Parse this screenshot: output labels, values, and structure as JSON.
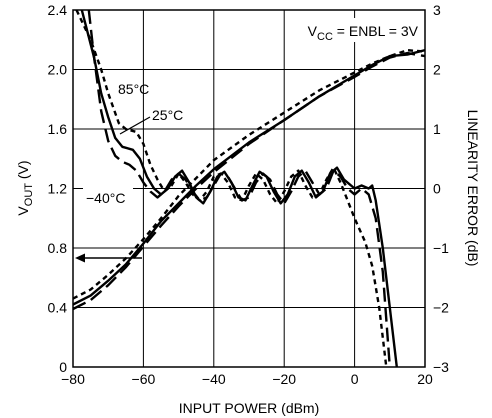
{
  "chart_data": {
    "type": "line",
    "title": "",
    "xlabel": "INPUT POWER (dBm)",
    "ylabel": {
      "main": "V",
      "sub": "OUT",
      "unit": " (V)"
    },
    "y2label": "LINEARITY ERROR (dB)",
    "xlim": [
      -80,
      20
    ],
    "ylim": [
      0,
      2.4
    ],
    "y2lim": [
      -3,
      3
    ],
    "grid": true,
    "x_ticks": [
      "−80",
      "−60",
      "−40",
      "−20",
      "0",
      "20"
    ],
    "y_ticks": [
      "0",
      "0.4",
      "0.8",
      "1.2",
      "1.6",
      "2.0",
      "2.4"
    ],
    "y2_ticks": [
      "−3",
      "−2",
      "−1",
      "0",
      "1",
      "2",
      "3"
    ],
    "condition": {
      "parts": [
        {
          "t": "V"
        },
        {
          "t": "CC",
          "sub": true
        },
        {
          "t": " = ENBL = 3V"
        }
      ]
    },
    "annotations": [
      "85°C",
      "25°C",
      "−40°C"
    ],
    "series": [
      {
        "name": "85°C",
        "axis": "left",
        "style": "short-dash",
        "points": [
          [
            -80,
            0.46
          ],
          [
            -75,
            0.52
          ],
          [
            -70,
            0.62
          ],
          [
            -65,
            0.73
          ],
          [
            -60,
            0.86
          ],
          [
            -55,
            1.0
          ],
          [
            -50,
            1.15
          ],
          [
            -45,
            1.27
          ],
          [
            -40,
            1.39
          ],
          [
            -30,
            1.56
          ],
          [
            -20,
            1.71
          ],
          [
            -10,
            1.86
          ],
          [
            0,
            1.98
          ],
          [
            5,
            2.04
          ],
          [
            10,
            2.09
          ],
          [
            15,
            2.13
          ],
          [
            20,
            2.12
          ]
        ]
      },
      {
        "name": "25°C",
        "axis": "left",
        "style": "solid",
        "points": [
          [
            -80,
            0.42
          ],
          [
            -75,
            0.48
          ],
          [
            -70,
            0.58
          ],
          [
            -65,
            0.69
          ],
          [
            -60,
            0.83
          ],
          [
            -55,
            0.98
          ],
          [
            -50,
            1.1
          ],
          [
            -45,
            1.22
          ],
          [
            -40,
            1.33
          ],
          [
            -30,
            1.51
          ],
          [
            -20,
            1.66
          ],
          [
            -10,
            1.82
          ],
          [
            0,
            1.96
          ],
          [
            5,
            2.03
          ],
          [
            10,
            2.09
          ],
          [
            15,
            2.1
          ],
          [
            20,
            2.13
          ]
        ]
      },
      {
        "name": "−40°C",
        "axis": "left",
        "style": "long-dash",
        "points": [
          [
            -80,
            0.39
          ],
          [
            -75,
            0.45
          ],
          [
            -70,
            0.55
          ],
          [
            -65,
            0.67
          ],
          [
            -60,
            0.81
          ],
          [
            -55,
            0.95
          ],
          [
            -50,
            1.08
          ],
          [
            -45,
            1.2
          ],
          [
            -40,
            1.31
          ],
          [
            -30,
            1.5
          ],
          [
            -20,
            1.66
          ],
          [
            -10,
            1.82
          ],
          [
            0,
            1.95
          ],
          [
            5,
            2.02
          ],
          [
            10,
            2.08
          ],
          [
            15,
            2.11
          ],
          [
            20,
            2.09
          ]
        ]
      },
      {
        "name": "85°C",
        "axis": "right",
        "style": "short-dash",
        "points": [
          [
            -79,
            3.0
          ],
          [
            -75,
            2.5
          ],
          [
            -72,
            2.0
          ],
          [
            -70,
            1.6
          ],
          [
            -67,
            1.1
          ],
          [
            -65,
            1.0
          ],
          [
            -62,
            0.95
          ],
          [
            -60,
            0.75
          ],
          [
            -58,
            0.4
          ],
          [
            -56,
            0.15
          ],
          [
            -54,
            -0.05
          ],
          [
            -52,
            0.05
          ],
          [
            -50,
            0.25
          ],
          [
            -48,
            0.1
          ],
          [
            -46,
            -0.1
          ],
          [
            -44,
            -0.2
          ],
          [
            -42,
            -0.05
          ],
          [
            -40,
            0.2
          ],
          [
            -38,
            0.25
          ],
          [
            -36,
            0.1
          ],
          [
            -34,
            -0.15
          ],
          [
            -32,
            -0.2
          ],
          [
            -30,
            0.05
          ],
          [
            -28,
            0.25
          ],
          [
            -26,
            0.15
          ],
          [
            -24,
            -0.1
          ],
          [
            -22,
            -0.25
          ],
          [
            -20,
            -0.05
          ],
          [
            -18,
            0.2
          ],
          [
            -16,
            0.3
          ],
          [
            -14,
            0.05
          ],
          [
            -12,
            -0.15
          ],
          [
            -10,
            -0.1
          ],
          [
            -8,
            0.15
          ],
          [
            -6,
            0.35
          ],
          [
            -4,
            0.1
          ],
          [
            -2,
            -0.2
          ],
          [
            0,
            -0.5
          ],
          [
            3,
            -0.9
          ],
          [
            5,
            -1.3
          ],
          [
            7,
            -2.0
          ],
          [
            9,
            -3.0
          ]
        ]
      },
      {
        "name": "25°C",
        "axis": "right",
        "style": "solid",
        "points": [
          [
            -77.5,
            3.0
          ],
          [
            -74,
            2.2
          ],
          [
            -72,
            1.6
          ],
          [
            -70,
            1.2
          ],
          [
            -68,
            0.85
          ],
          [
            -66,
            0.7
          ],
          [
            -63,
            0.65
          ],
          [
            -61,
            0.5
          ],
          [
            -59,
            0.2
          ],
          [
            -57,
            0.0
          ],
          [
            -55,
            -0.1
          ],
          [
            -53,
            0.0
          ],
          [
            -51,
            0.2
          ],
          [
            -49,
            0.3
          ],
          [
            -47,
            0.1
          ],
          [
            -45,
            -0.15
          ],
          [
            -43,
            -0.25
          ],
          [
            -41,
            -0.05
          ],
          [
            -39,
            0.2
          ],
          [
            -37,
            0.28
          ],
          [
            -35,
            0.1
          ],
          [
            -33,
            -0.15
          ],
          [
            -31,
            -0.2
          ],
          [
            -29,
            0.05
          ],
          [
            -27,
            0.28
          ],
          [
            -25,
            0.2
          ],
          [
            -23,
            -0.05
          ],
          [
            -21,
            -0.25
          ],
          [
            -19,
            -0.1
          ],
          [
            -17,
            0.2
          ],
          [
            -15,
            0.3
          ],
          [
            -13,
            0.1
          ],
          [
            -11,
            -0.15
          ],
          [
            -9,
            -0.05
          ],
          [
            -7,
            0.25
          ],
          [
            -5,
            0.35
          ],
          [
            -3,
            0.15
          ],
          [
            0,
            0.0
          ],
          [
            2,
            0.05
          ],
          [
            4,
            0.0
          ],
          [
            5,
            0.05
          ],
          [
            6,
            -0.2
          ],
          [
            8,
            -1.0
          ],
          [
            10,
            -2.0
          ],
          [
            12,
            -3.0
          ]
        ]
      },
      {
        "name": "−40°C",
        "axis": "right",
        "style": "long-dash",
        "points": [
          [
            -75.5,
            3.0
          ],
          [
            -74,
            2.2
          ],
          [
            -72,
            1.3
          ],
          [
            -70,
            0.8
          ],
          [
            -68,
            0.55
          ],
          [
            -66,
            0.45
          ],
          [
            -64,
            0.4
          ],
          [
            -62,
            0.3
          ],
          [
            -60,
            0.1
          ],
          [
            -58,
            -0.05
          ],
          [
            -56,
            -0.15
          ],
          [
            -54,
            -0.05
          ],
          [
            -52,
            0.15
          ],
          [
            -50,
            0.25
          ],
          [
            -48,
            0.15
          ],
          [
            -46,
            -0.05
          ],
          [
            -44,
            -0.2
          ],
          [
            -42,
            -0.15
          ],
          [
            -40,
            0.05
          ],
          [
            -38,
            0.25
          ],
          [
            -36,
            0.2
          ],
          [
            -34,
            0.0
          ],
          [
            -32,
            -0.2
          ],
          [
            -30,
            -0.15
          ],
          [
            -28,
            0.1
          ],
          [
            -26,
            0.25
          ],
          [
            -24,
            0.15
          ],
          [
            -22,
            -0.1
          ],
          [
            -20,
            -0.25
          ],
          [
            -18,
            -0.05
          ],
          [
            -16,
            0.2
          ],
          [
            -14,
            0.3
          ],
          [
            -12,
            0.1
          ],
          [
            -10,
            -0.1
          ],
          [
            -8,
            0.0
          ],
          [
            -6,
            0.3
          ],
          [
            -4,
            0.2
          ],
          [
            -2,
            0.0
          ],
          [
            0,
            -0.1
          ],
          [
            2,
            0.0
          ],
          [
            4,
            -0.1
          ],
          [
            6,
            -0.5
          ],
          [
            8,
            -1.4
          ],
          [
            10,
            -3.0
          ]
        ]
      }
    ]
  }
}
